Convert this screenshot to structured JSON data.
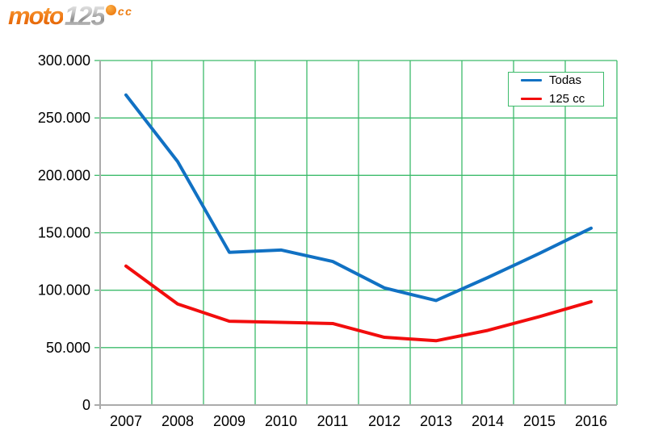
{
  "logo": {
    "moto": "moto",
    "num": "125",
    "cc": "cc"
  },
  "colors": {
    "background": "#ffffff",
    "grid_green": "#3dbb6b",
    "axis_gray": "#ababab",
    "text_black": "#000000",
    "legend_border_green": "#3dbb6b"
  },
  "legend": {
    "position": "top-right",
    "entries": [
      "Todas",
      "125 cc"
    ]
  },
  "chart_data": {
    "type": "line",
    "title": "",
    "xlabel": "",
    "ylabel": "",
    "categories": [
      "2007",
      "2008",
      "2009",
      "2010",
      "2011",
      "2012",
      "2013",
      "2014",
      "2015",
      "2016"
    ],
    "series": [
      {
        "name": "Todas",
        "color": "#1171c3",
        "values": [
          270000,
          212000,
          133000,
          135000,
          125000,
          102000,
          91000,
          111000,
          132000,
          154000
        ]
      },
      {
        "name": "125 cc",
        "color": "#f20d0d",
        "values": [
          121000,
          88000,
          73000,
          72000,
          71000,
          59000,
          56000,
          65000,
          77000,
          90000
        ]
      }
    ],
    "ylim": [
      0,
      300000
    ],
    "ytick_step": 50000,
    "ytick_labels": [
      "0",
      "50.000",
      "100.000",
      "150.000",
      "200.000",
      "250.000",
      "300.000"
    ],
    "grid": true,
    "legend_position": "top-right"
  }
}
